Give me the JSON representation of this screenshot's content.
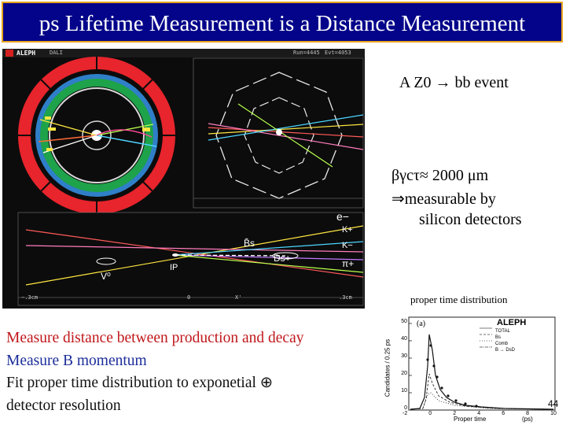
{
  "slide": {
    "title": "ps Lifetime Measurement is a Distance Measurement",
    "page_number": "44"
  },
  "event_display": {
    "experiment": "ALEPH",
    "header_left": "DALI",
    "header_run": "Run=4445",
    "header_event": "Evt=4053",
    "particle_labels": {
      "electron": "e−",
      "bs_bar": "B̄s",
      "kaon_plus": "K+",
      "kaon_minus": "K−",
      "ds": "Ds+",
      "pion": "π+",
      "ip": "IP",
      "v0": "V⁰"
    },
    "axis_left": "−.3cm",
    "axis_mid": "0",
    "axis_x": "X'",
    "axis_right": ".3cm"
  },
  "annotations": {
    "event_caption": "A Z0 → bb event",
    "lifetime": "βγcτ≈ 2000 μm",
    "measurable": "⇒measurable by",
    "silicon": "silicon detectors"
  },
  "bullets": [
    "Measure distance between production and decay",
    "Measure B momentum",
    "Fit proper time distribution to exponetial ⊕",
    "detector resolution"
  ],
  "plot": {
    "caption": "proper time distribution",
    "panel_label": "(a)",
    "experiment": "ALEPH",
    "ylabel": "Candidates / 0.25 ps",
    "xlabel": "Proper time",
    "xunit": "(ps)",
    "legend": [
      "TOTAL",
      "Bs",
      "Comb",
      "B → DsD"
    ],
    "yticks": [
      "50",
      "40",
      "30",
      "20",
      "10",
      "0"
    ],
    "xticks": [
      "-2",
      "0",
      "2",
      "4",
      "6",
      "8",
      "10"
    ]
  },
  "colors": {
    "title_bg": "#04048a",
    "title_border": "#e8a51b",
    "display_bg": "#0c0c0c",
    "ring_red": "#e8242c",
    "ring_green": "#1ea24a"
  }
}
